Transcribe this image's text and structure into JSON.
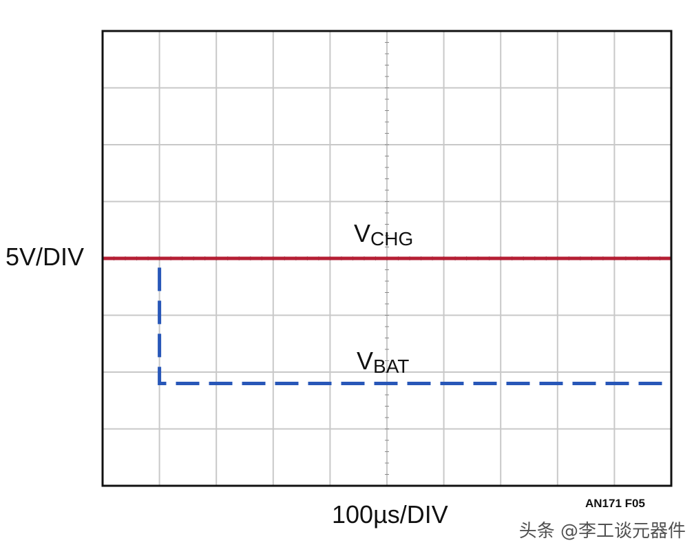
{
  "chart_data": {
    "type": "line",
    "y_scale_label": "5V/DIV",
    "x_scale_label": "100µs/DIV",
    "figure_id": "AN171 F05",
    "divisions": {
      "x": 10,
      "y": 8
    },
    "series": [
      {
        "name": "V",
        "name_sub": "CHG",
        "style": "solid",
        "color": "#b51f34",
        "x": [
          0,
          10
        ],
        "y": [
          4,
          4
        ]
      },
      {
        "name": "V",
        "name_sub": "BAT",
        "style": "dashed",
        "color": "#2857b8",
        "x": [
          0,
          1,
          1,
          10
        ],
        "y": [
          4,
          4,
          1.8,
          1.8
        ]
      }
    ]
  },
  "watermark": "头条 @李工谈元器件",
  "colors": {
    "grid": "#c8c8c8",
    "frame": "#111111",
    "minor_ticks": "#888888"
  }
}
